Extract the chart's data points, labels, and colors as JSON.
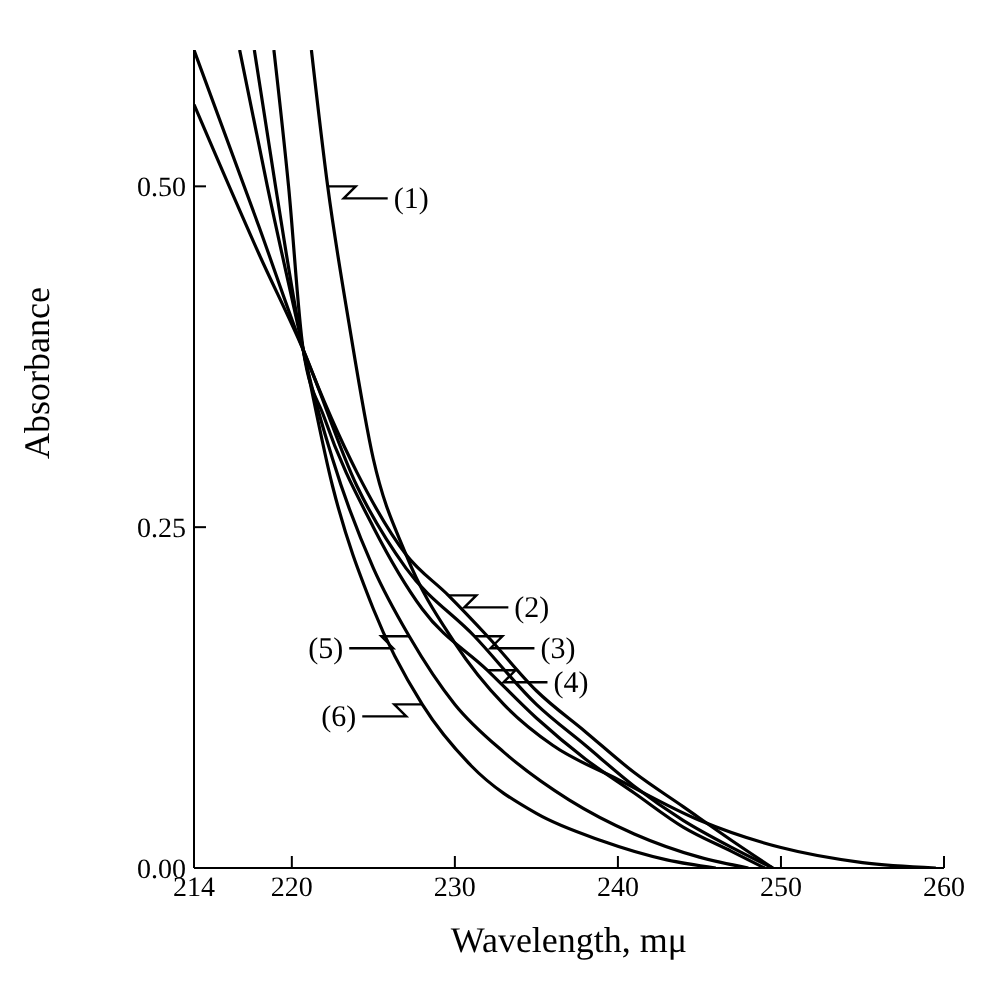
{
  "chart_data": {
    "type": "line",
    "xlabel": "Wavelength, mμ",
    "ylabel": "Absorbance",
    "xlim": [
      214,
      260
    ],
    "xticks": [
      214,
      220,
      230,
      240,
      250,
      260
    ],
    "ylim": [
      0,
      0.6
    ],
    "yticks": [
      {
        "value": 0,
        "label": "0.00"
      },
      {
        "value": 0.25,
        "label": "0.25"
      },
      {
        "value": 0.5,
        "label": "0.50"
      }
    ],
    "marker": "none",
    "line_style": "solid",
    "series": [
      {
        "color": "#000000",
        "x": [
          221.2,
          222.2,
          223.5,
          225,
          227,
          230,
          233,
          236,
          240,
          245,
          250,
          255,
          259.5
        ],
        "values": [
          0.6,
          0.5,
          0.4,
          0.3,
          0.23,
          0.165,
          0.12,
          0.09,
          0.065,
          0.035,
          0.015,
          0.004,
          0
        ]
      },
      {
        "color": "#000000",
        "x": [
          214,
          218,
          220.7,
          224,
          227,
          229.6,
          232,
          235,
          238,
          241,
          244,
          247,
          249.5
        ],
        "values": [
          0.6,
          0.47,
          0.38,
          0.29,
          0.23,
          0.2,
          0.17,
          0.13,
          0.1,
          0.07,
          0.045,
          0.02,
          0
        ]
      },
      {
        "color": "#000000",
        "x": [
          214,
          218,
          220.7,
          224,
          227,
          231.2,
          235,
          238,
          241,
          244,
          247,
          249.5
        ],
        "values": [
          0.56,
          0.45,
          0.38,
          0.28,
          0.22,
          0.17,
          0.12,
          0.09,
          0.06,
          0.035,
          0.015,
          0
        ]
      },
      {
        "color": "#000000",
        "x": [
          218.9,
          219.8,
          220.7,
          222,
          225,
          228,
          232,
          235,
          238,
          241,
          244,
          247,
          249
        ],
        "values": [
          0.6,
          0.5,
          0.38,
          0.33,
          0.25,
          0.19,
          0.145,
          0.11,
          0.08,
          0.055,
          0.03,
          0.012,
          0
        ]
      },
      {
        "color": "#000000",
        "x": [
          217.7,
          219,
          220.7,
          222.5,
          225,
          227.2,
          230,
          233,
          237,
          241,
          245,
          248
        ],
        "values": [
          0.6,
          0.5,
          0.38,
          0.3,
          0.22,
          0.17,
          0.12,
          0.085,
          0.05,
          0.025,
          0.008,
          0
        ]
      },
      {
        "color": "#000000",
        "x": [
          216.8,
          218.5,
          220.7,
          222.5,
          225,
          228,
          231,
          235,
          239,
          243,
          246
        ],
        "values": [
          0.6,
          0.5,
          0.38,
          0.28,
          0.19,
          0.12,
          0.075,
          0.04,
          0.02,
          0.006,
          0
        ]
      }
    ],
    "annotations": [
      {
        "text": "(1)",
        "x": 222.2,
        "y": 0.5
      },
      {
        "text": "(2)",
        "x": 229.6,
        "y": 0.2
      },
      {
        "text": "(3)",
        "x": 231.2,
        "y": 0.17
      },
      {
        "text": "(4)",
        "x": 232,
        "y": 0.145
      },
      {
        "text": "(5)",
        "x": 227.2,
        "y": 0.17
      },
      {
        "text": "(6)",
        "x": 228,
        "y": 0.12
      }
    ]
  }
}
